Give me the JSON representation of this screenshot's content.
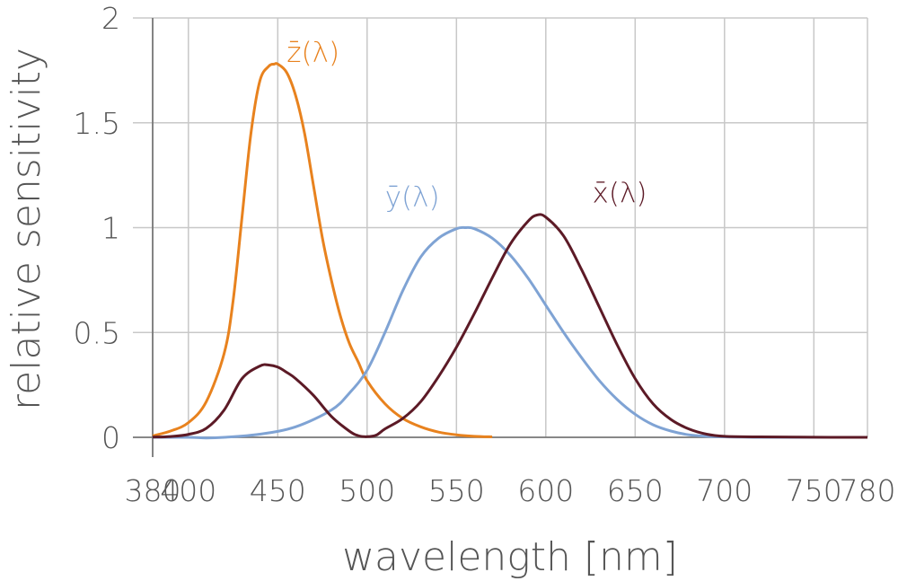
{
  "chart_data": {
    "type": "line",
    "title": "",
    "xlabel": "wavelength [nm]",
    "ylabel": "relative sensitivity",
    "xlim": [
      380,
      780
    ],
    "ylim": [
      0,
      2
    ],
    "grid": true,
    "x_ticks": [
      {
        "value": 380,
        "label": "380"
      },
      {
        "value": 400,
        "label": "400"
      },
      {
        "value": 450,
        "label": "450"
      },
      {
        "value": 500,
        "label": "500"
      },
      {
        "value": 550,
        "label": "550"
      },
      {
        "value": 600,
        "label": "600"
      },
      {
        "value": 650,
        "label": "650"
      },
      {
        "value": 700,
        "label": "700"
      },
      {
        "value": 750,
        "label": "750"
      },
      {
        "value": 780,
        "label": "780"
      }
    ],
    "y_ticks": [
      {
        "value": 0,
        "label": "0"
      },
      {
        "value": 0.5,
        "label": "0.5"
      },
      {
        "value": 1,
        "label": "1"
      },
      {
        "value": 1.5,
        "label": "1.5"
      },
      {
        "value": 2,
        "label": "2"
      }
    ],
    "series": [
      {
        "name": "z̄(λ)",
        "color": "#e8821e",
        "label_at": [
          455,
          1.79
        ],
        "x": [
          380,
          390,
          400,
          410,
          420,
          425,
          430,
          435,
          440,
          445,
          448,
          450,
          455,
          460,
          465,
          470,
          475,
          480,
          485,
          490,
          495,
          500,
          510,
          520,
          530,
          540,
          550,
          560,
          570
        ],
        "y": [
          0.007,
          0.03,
          0.07,
          0.17,
          0.4,
          0.65,
          1.05,
          1.45,
          1.7,
          1.77,
          1.78,
          1.78,
          1.74,
          1.63,
          1.45,
          1.2,
          0.95,
          0.75,
          0.58,
          0.45,
          0.36,
          0.27,
          0.16,
          0.09,
          0.05,
          0.025,
          0.012,
          0.005,
          0.002
        ]
      },
      {
        "name": "ȳ(λ)",
        "color": "#7fa3d4",
        "label_at": [
          510,
          1.1
        ],
        "x": [
          380,
          400,
          410,
          420,
          440,
          460,
          480,
          490,
          500,
          510,
          520,
          530,
          540,
          550,
          555,
          560,
          570,
          580,
          590,
          600,
          610,
          620,
          630,
          640,
          650,
          660,
          670,
          680,
          690,
          700,
          710,
          720,
          740,
          760,
          780
        ],
        "y": [
          0.0,
          0.0,
          -0.003,
          0.0,
          0.015,
          0.05,
          0.13,
          0.21,
          0.32,
          0.5,
          0.7,
          0.86,
          0.95,
          0.995,
          1.0,
          0.995,
          0.95,
          0.87,
          0.76,
          0.63,
          0.5,
          0.38,
          0.27,
          0.18,
          0.11,
          0.06,
          0.03,
          0.012,
          0.005,
          0.002,
          0.001,
          0.0,
          0.0,
          0.0,
          0.0
        ]
      },
      {
        "name": "x̄(λ)",
        "color": "#5c1a26",
        "label_at": [
          626,
          1.12
        ],
        "x": [
          380,
          390,
          400,
          410,
          420,
          430,
          440,
          445,
          450,
          455,
          460,
          470,
          480,
          490,
          495,
          500,
          505,
          510,
          520,
          530,
          540,
          550,
          560,
          570,
          580,
          590,
          595,
          600,
          610,
          620,
          630,
          640,
          650,
          660,
          670,
          680,
          690,
          700,
          720,
          740,
          760,
          780
        ],
        "y": [
          0.001,
          0.004,
          0.014,
          0.043,
          0.13,
          0.28,
          0.34,
          0.345,
          0.335,
          0.31,
          0.28,
          0.2,
          0.1,
          0.03,
          0.008,
          0.003,
          0.01,
          0.04,
          0.09,
          0.17,
          0.29,
          0.43,
          0.59,
          0.76,
          0.92,
          1.03,
          1.06,
          1.05,
          0.96,
          0.8,
          0.62,
          0.44,
          0.28,
          0.16,
          0.085,
          0.04,
          0.015,
          0.005,
          0.002,
          0.001,
          0.0,
          0.0
        ]
      }
    ]
  }
}
